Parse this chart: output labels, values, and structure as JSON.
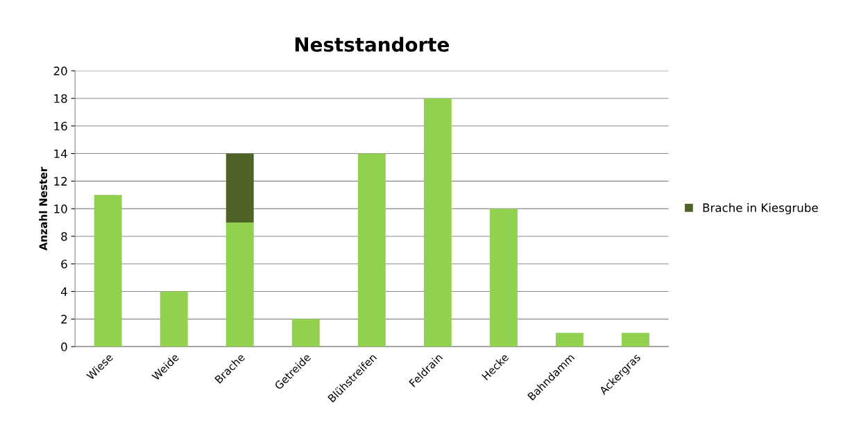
{
  "chart_data": {
    "type": "bar",
    "title": "Neststandorte",
    "ylabel": "Anzahl Nester",
    "categories": [
      "Wiese",
      "Weide",
      "Brache",
      "Getreide",
      "Blühstreifen",
      "Feldrain",
      "Hecke",
      "Bahndamm",
      "Ackergras"
    ],
    "series": [
      {
        "color": "#92d050",
        "values": [
          11,
          4,
          9,
          2,
          14,
          18,
          10,
          1,
          1
        ]
      },
      {
        "name": "Brache in Kiesgrube",
        "color": "#4f6228",
        "values": [
          null,
          null,
          5,
          null,
          null,
          null,
          null,
          null,
          null
        ]
      }
    ],
    "stacked": true,
    "ylim": [
      0,
      20
    ],
    "yticks": [
      0,
      2,
      4,
      6,
      8,
      10,
      12,
      14,
      16,
      18,
      20
    ],
    "grid": "y",
    "legend": "right"
  }
}
